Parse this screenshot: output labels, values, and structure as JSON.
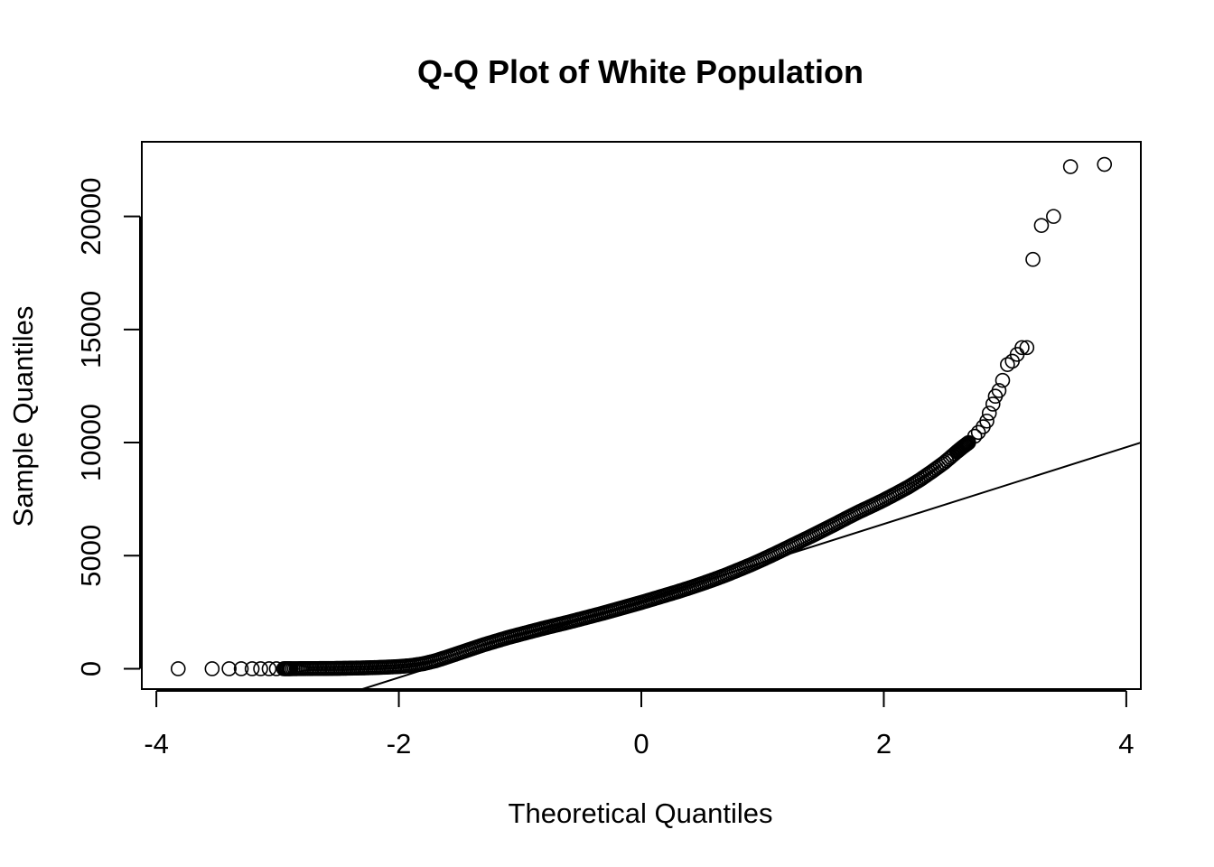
{
  "chart_data": {
    "type": "scatter",
    "title": "Q-Q Plot of White Population",
    "xlabel": "Theoretical Quantiles",
    "ylabel": "Sample Quantiles",
    "xlim": [
      -4.12,
      4.12
    ],
    "ylim": [
      -900,
      23300
    ],
    "x_ticks": [
      -4,
      -2,
      0,
      2,
      4
    ],
    "x_tick_labels": [
      "-4",
      "-2",
      "0",
      "2",
      "4"
    ],
    "y_ticks": [
      0,
      5000,
      10000,
      15000,
      20000
    ],
    "y_tick_labels": [
      "0",
      "5000",
      "10000",
      "15000",
      "20000"
    ],
    "grid": false,
    "marker": "open-circle",
    "reference_line": {
      "from": [
        -2.3,
        -900
      ],
      "to": [
        4.12,
        10000
      ]
    },
    "points": [
      [
        -3.82,
        0
      ],
      [
        -3.54,
        0
      ],
      [
        -3.4,
        0
      ],
      [
        -3.3,
        0
      ],
      [
        -3.21,
        0
      ],
      [
        -3.14,
        0
      ],
      [
        -3.07,
        0
      ],
      [
        -3.01,
        0
      ],
      [
        -2.95,
        0
      ],
      [
        -2.89,
        0
      ],
      [
        -2.8,
        5
      ],
      [
        -2.7,
        8
      ],
      [
        -2.6,
        10
      ],
      [
        -2.5,
        15
      ],
      [
        -2.4,
        25
      ],
      [
        -2.3,
        35
      ],
      [
        -2.2,
        50
      ],
      [
        -2.1,
        70
      ],
      [
        -2.0,
        95
      ],
      [
        -1.9,
        140
      ],
      [
        -1.8,
        220
      ],
      [
        -1.7,
        350
      ],
      [
        -1.6,
        520
      ],
      [
        -1.5,
        700
      ],
      [
        -1.4,
        880
      ],
      [
        -1.3,
        1060
      ],
      [
        -1.2,
        1220
      ],
      [
        -1.1,
        1380
      ],
      [
        -1.0,
        1520
      ],
      [
        -0.9,
        1660
      ],
      [
        -0.8,
        1800
      ],
      [
        -0.7,
        1930
      ],
      [
        -0.6,
        2060
      ],
      [
        -0.5,
        2200
      ],
      [
        -0.4,
        2340
      ],
      [
        -0.3,
        2480
      ],
      [
        -0.2,
        2630
      ],
      [
        -0.1,
        2780
      ],
      [
        0.0,
        2930
      ],
      [
        0.1,
        3090
      ],
      [
        0.2,
        3250
      ],
      [
        0.3,
        3410
      ],
      [
        0.4,
        3580
      ],
      [
        0.5,
        3760
      ],
      [
        0.6,
        3950
      ],
      [
        0.7,
        4150
      ],
      [
        0.8,
        4370
      ],
      [
        0.9,
        4590
      ],
      [
        1.0,
        4830
      ],
      [
        1.1,
        5080
      ],
      [
        1.2,
        5340
      ],
      [
        1.3,
        5600
      ],
      [
        1.4,
        5860
      ],
      [
        1.5,
        6130
      ],
      [
        1.6,
        6400
      ],
      [
        1.7,
        6680
      ],
      [
        1.8,
        6950
      ],
      [
        1.9,
        7200
      ],
      [
        2.0,
        7460
      ],
      [
        2.1,
        7740
      ],
      [
        2.2,
        8030
      ],
      [
        2.3,
        8360
      ],
      [
        2.4,
        8730
      ],
      [
        2.5,
        9120
      ],
      [
        2.6,
        9580
      ],
      [
        2.65,
        9800
      ],
      [
        2.7,
        10000
      ],
      [
        2.75,
        10280
      ],
      [
        2.78,
        10450
      ],
      [
        2.82,
        10700
      ],
      [
        2.85,
        10950
      ],
      [
        2.87,
        11300
      ],
      [
        2.9,
        11700
      ],
      [
        2.92,
        12050
      ],
      [
        2.95,
        12300
      ],
      [
        2.98,
        12750
      ],
      [
        3.02,
        13450
      ],
      [
        3.06,
        13600
      ],
      [
        3.1,
        13900
      ],
      [
        3.14,
        14200
      ],
      [
        3.18,
        14200
      ],
      [
        3.23,
        18100
      ],
      [
        3.3,
        19600
      ],
      [
        3.4,
        20000
      ],
      [
        3.54,
        22200
      ],
      [
        3.82,
        22300
      ]
    ]
  }
}
